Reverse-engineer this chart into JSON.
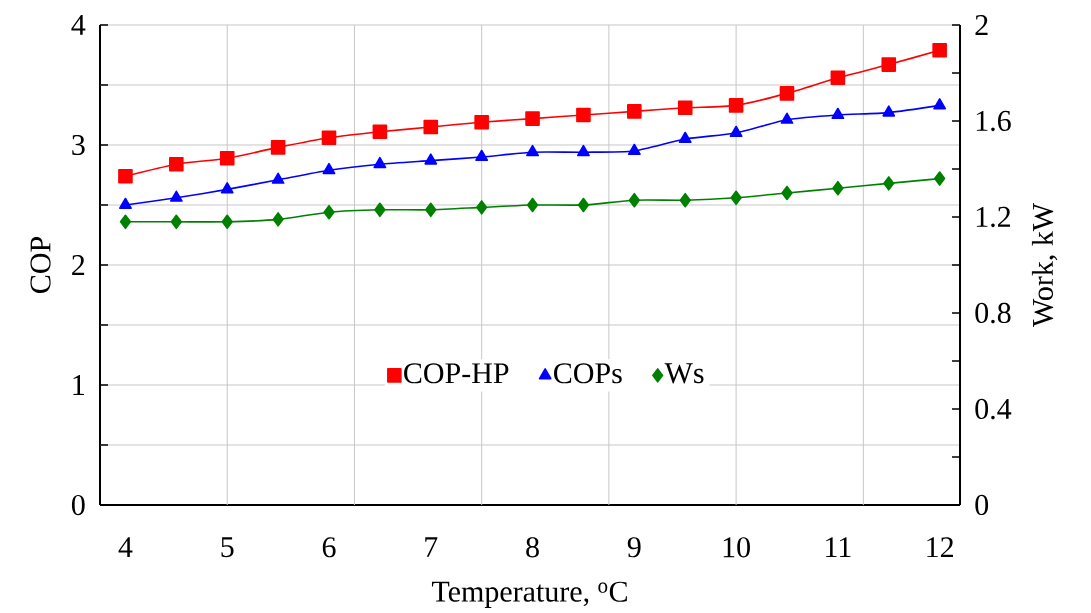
{
  "chart_data": {
    "type": "line",
    "xlabel": "Temperature, $^{o}$C",
    "ylabel": "COP",
    "y2label": "Work, kW",
    "x": [
      4,
      4.5,
      5,
      5.5,
      6,
      6.5,
      7,
      7.5,
      8,
      8.5,
      9,
      9.5,
      10,
      10.5,
      11,
      11.5,
      12
    ],
    "series": [
      {
        "name": "COP-HP",
        "color": "#ff0000",
        "marker": "square",
        "values": [
          2.74,
          2.84,
          2.89,
          2.98,
          3.06,
          3.11,
          3.15,
          3.19,
          3.22,
          3.25,
          3.28,
          3.31,
          3.33,
          3.43,
          3.56,
          3.67,
          3.79
        ]
      },
      {
        "name": "COPs",
        "color": "#0000ff",
        "marker": "triangle",
        "values": [
          2.5,
          2.56,
          2.63,
          2.71,
          2.79,
          2.84,
          2.87,
          2.9,
          2.94,
          2.94,
          2.95,
          3.05,
          3.1,
          3.21,
          3.25,
          3.27,
          3.33
        ]
      },
      {
        "name": "Ws",
        "color": "#008000",
        "marker": "diamond",
        "axis": "y2",
        "values": [
          1.18,
          1.18,
          1.18,
          1.19,
          1.22,
          1.23,
          1.23,
          1.24,
          1.25,
          1.25,
          1.27,
          1.27,
          1.28,
          1.3,
          1.32,
          1.34,
          1.36
        ]
      }
    ],
    "xlim": [
      3.75,
      12.2
    ],
    "xticks": [
      4,
      5,
      6,
      7,
      8,
      9,
      10,
      11,
      12,
      {
        "value": 5,
        "label": null
      },
      {
        "value": 6.25,
        "label": null
      },
      {
        "value": 7.5,
        "label": null
      },
      {
        "value": 8.75,
        "label": null
      },
      {
        "value": 10,
        "label": null
      },
      {
        "value": 11.25,
        "label": null
      }
    ],
    "ylim": [
      0,
      4
    ],
    "yticks": [
      0,
      1,
      2,
      3,
      4,
      {
        "value": 0.5,
        "label": null
      },
      {
        "value": 1.5,
        "label": null
      },
      {
        "value": 2.5,
        "label": null
      },
      {
        "value": 3.5,
        "label": null
      }
    ],
    "y2lim": [
      0,
      2
    ],
    "y2ticks": [
      0,
      0.4,
      0.8,
      1.2,
      1.6,
      2,
      {
        "value": 0.2,
        "label": null
      },
      {
        "value": 0.6,
        "label": null
      },
      {
        "value": 1,
        "label": null
      },
      {
        "value": 1.4,
        "label": null
      },
      {
        "value": 1.8,
        "label": null
      }
    ],
    "grid": true,
    "legend": "center",
    "line_style": "solid"
  }
}
